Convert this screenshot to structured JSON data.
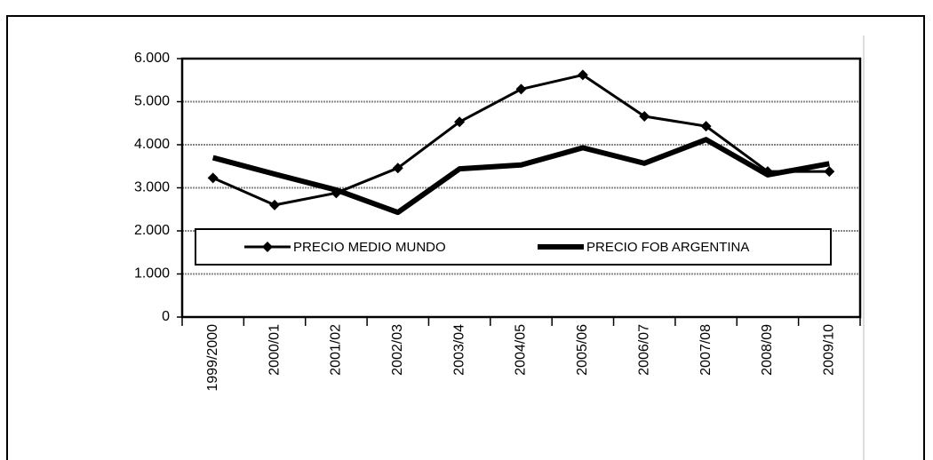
{
  "chart_data": {
    "type": "line",
    "categories": [
      "1999/2000",
      "2000/01",
      "2001/02",
      "2002/03",
      "2003/04",
      "2004/05",
      "2005/06",
      "2006/07",
      "2007/08",
      "2008/09",
      "2009/10"
    ],
    "series": [
      {
        "name": "PRECIO MEDIO MUNDO",
        "color": "#000000",
        "marker": "diamond",
        "values": [
          3230,
          2600,
          2880,
          3460,
          4530,
          5290,
          5620,
          4660,
          4430,
          3380,
          3380
        ]
      },
      {
        "name": "PRECIO FOB ARGENTINA",
        "color": "#000000",
        "values": [
          3700,
          3320,
          2950,
          2430,
          3440,
          3530,
          3930,
          3570,
          4120,
          3300,
          3560
        ]
      }
    ],
    "ylim": [
      0,
      6000
    ],
    "yticks": [
      0,
      {
        "value": 1000,
        "label": "1.000"
      },
      {
        "value": 2000,
        "label": "2.000"
      },
      {
        "value": 3000,
        "label": "3.000"
      },
      {
        "value": 4000,
        "label": "4.000"
      },
      {
        "value": 5000,
        "label": "5.000"
      },
      {
        "value": 6000,
        "label": "6.000"
      }
    ],
    "grid": true,
    "legend_position": "center"
  }
}
